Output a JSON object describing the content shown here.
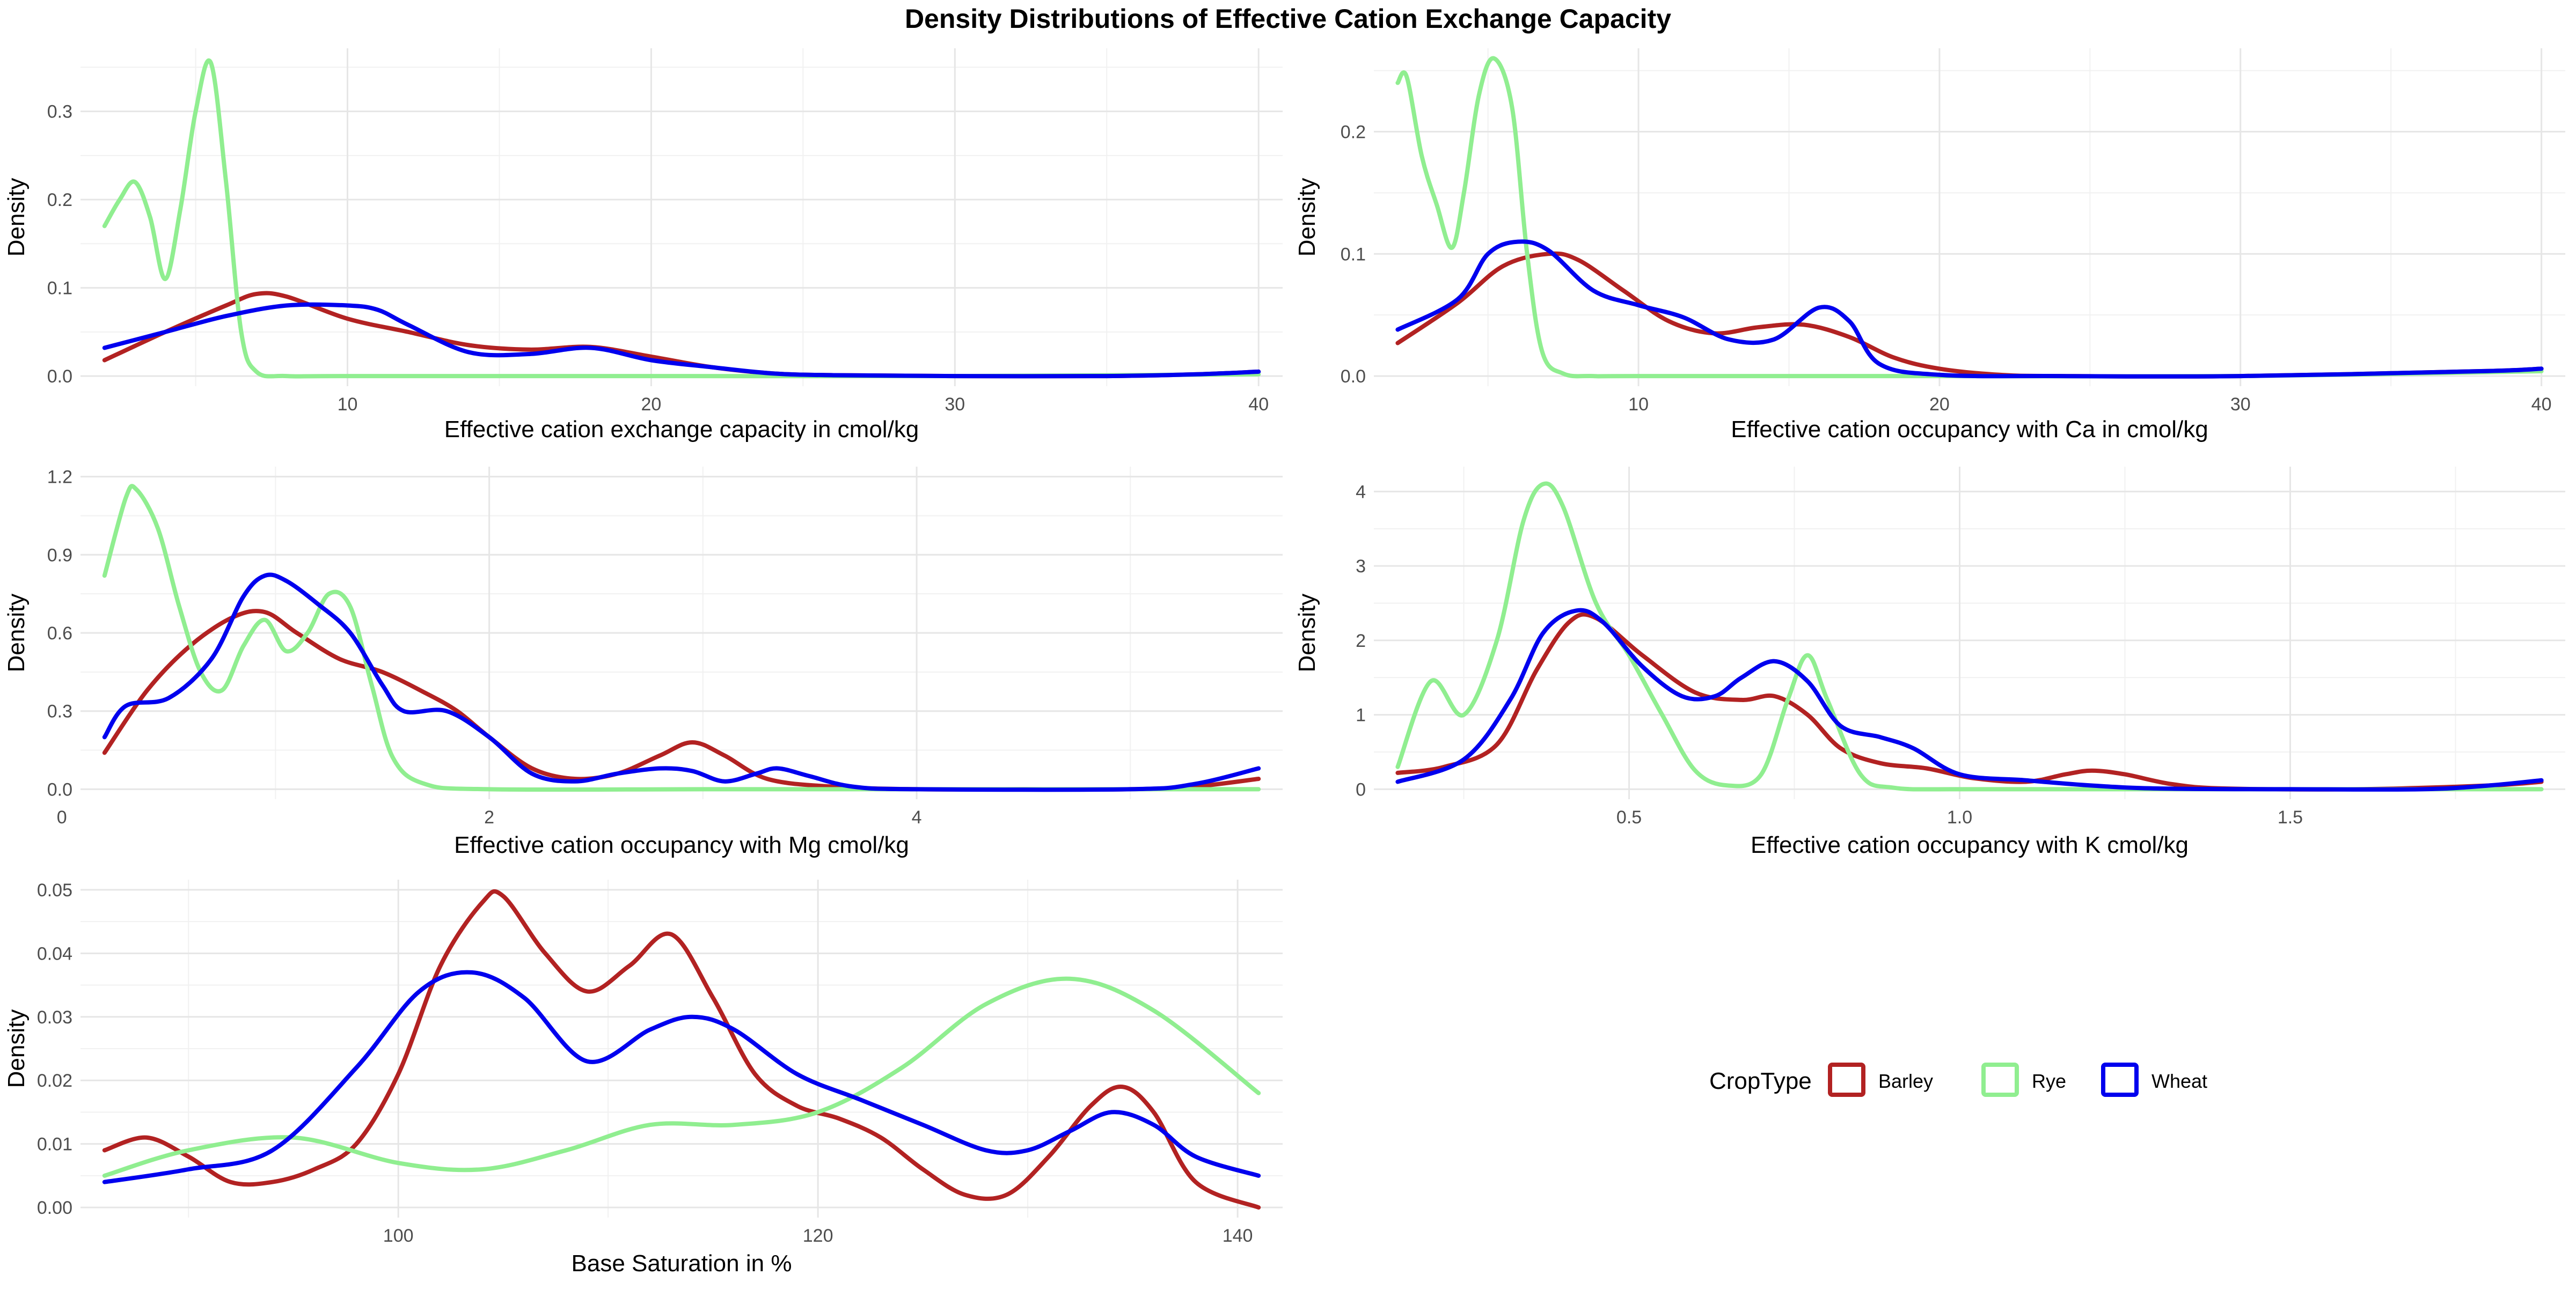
{
  "title": "Density Distributions of Effective Cation Exchange Capacity",
  "legend": {
    "title": "CropType",
    "items": [
      {
        "label": "Barley",
        "color": "#B22222"
      },
      {
        "label": "Rye",
        "color": "#90EE90"
      },
      {
        "label": "Wheat",
        "color": "#0000EE"
      }
    ]
  },
  "chart_data": [
    {
      "type": "line",
      "xlabel": "Effective cation exchange capacity in cmol/kg",
      "ylabel": "Density",
      "xlim": [
        2,
        40
      ],
      "ylim": [
        0,
        0.36
      ],
      "xticks": [
        10,
        20,
        30,
        40
      ],
      "xtick_labels": [
        "10",
        "20",
        "30",
        "40"
      ],
      "yticks": [
        0,
        0.1,
        0.2,
        0.3
      ],
      "ytick_labels": [
        "0.0",
        "0.1",
        "0.2",
        "0.3"
      ],
      "grid": true,
      "series": [
        {
          "name": "Barley",
          "color": "#B22222",
          "x": [
            2,
            4,
            6,
            7,
            8,
            10,
            12,
            14,
            16,
            18,
            20,
            22,
            24,
            26,
            30,
            35,
            38,
            40
          ],
          "y": [
            0.018,
            0.05,
            0.08,
            0.093,
            0.09,
            0.065,
            0.05,
            0.035,
            0.03,
            0.033,
            0.022,
            0.01,
            0.003,
            0.001,
            0,
            0,
            0.002,
            0.005
          ]
        },
        {
          "name": "Rye",
          "color": "#90EE90",
          "x": [
            2,
            2.5,
            3,
            3.5,
            4,
            4.5,
            5,
            5.5,
            6,
            6.5,
            7,
            8,
            10,
            20,
            30,
            40
          ],
          "y": [
            0.17,
            0.2,
            0.22,
            0.18,
            0.11,
            0.19,
            0.3,
            0.355,
            0.22,
            0.05,
            0.005,
            0,
            0,
            0,
            0,
            0.002
          ]
        },
        {
          "name": "Wheat",
          "color": "#0000EE",
          "x": [
            2,
            4,
            6,
            8,
            10,
            11,
            12,
            14,
            16,
            18,
            20,
            22,
            24,
            26,
            30,
            35,
            38,
            40
          ],
          "y": [
            0.032,
            0.05,
            0.068,
            0.08,
            0.08,
            0.075,
            0.058,
            0.027,
            0.025,
            0.032,
            0.018,
            0.01,
            0.003,
            0.001,
            0,
            0,
            0.002,
            0.005
          ]
        }
      ]
    },
    {
      "type": "line",
      "xlabel": "Effective cation occupancy with Ca in cmol/kg",
      "ylabel": "Density",
      "xlim": [
        2,
        40
      ],
      "ylim": [
        0,
        0.26
      ],
      "xticks": [
        10,
        20,
        30,
        40
      ],
      "xtick_labels": [
        "10",
        "20",
        "30",
        "40"
      ],
      "yticks": [
        0,
        0.1,
        0.2
      ],
      "ytick_labels": [
        "0.0",
        "0.1",
        "0.2"
      ],
      "grid": true,
      "series": [
        {
          "name": "Barley",
          "color": "#B22222",
          "x": [
            2,
            4,
            5.5,
            7,
            8,
            9.5,
            11,
            12.5,
            14,
            15.5,
            17,
            18.5,
            20,
            22,
            24,
            30,
            38,
            40
          ],
          "y": [
            0.027,
            0.06,
            0.09,
            0.1,
            0.095,
            0.07,
            0.045,
            0.035,
            0.04,
            0.042,
            0.032,
            0.015,
            0.006,
            0.001,
            0,
            0,
            0.004,
            0.006
          ]
        },
        {
          "name": "Rye",
          "color": "#90EE90",
          "x": [
            2,
            2.3,
            2.8,
            3.3,
            3.8,
            4.2,
            4.7,
            5.2,
            5.8,
            6.3,
            6.8,
            7.5,
            8.5,
            10,
            20,
            30,
            40
          ],
          "y": [
            0.24,
            0.245,
            0.18,
            0.14,
            0.105,
            0.15,
            0.23,
            0.26,
            0.22,
            0.1,
            0.02,
            0.002,
            0,
            0,
            0,
            0,
            0.004
          ]
        },
        {
          "name": "Wheat",
          "color": "#0000EE",
          "x": [
            2,
            4,
            5,
            6,
            7,
            8.5,
            10,
            11.5,
            13,
            14.5,
            16,
            17,
            18,
            20,
            24,
            30,
            38,
            40
          ],
          "y": [
            0.038,
            0.063,
            0.1,
            0.11,
            0.103,
            0.07,
            0.058,
            0.048,
            0.03,
            0.03,
            0.056,
            0.045,
            0.01,
            0.001,
            0,
            0,
            0.004,
            0.006
          ]
        }
      ]
    },
    {
      "type": "line",
      "xlabel": "Effective cation occupancy with Mg cmol/kg",
      "ylabel": "Density",
      "xlim": [
        0.2,
        5.6
      ],
      "ylim": [
        0,
        1.2
      ],
      "xticks": [
        0,
        2,
        4
      ],
      "xtick_labels": [
        "0",
        "2",
        "4"
      ],
      "yticks": [
        0,
        0.3,
        0.6,
        0.9,
        1.2
      ],
      "ytick_labels": [
        "0.0",
        "0.3",
        "0.6",
        "0.9",
        "1.2"
      ],
      "grid": true,
      "series": [
        {
          "name": "Barley",
          "color": "#B22222",
          "x": [
            0.2,
            0.4,
            0.6,
            0.8,
            0.95,
            1.1,
            1.3,
            1.5,
            1.7,
            1.85,
            2.0,
            2.2,
            2.4,
            2.6,
            2.8,
            2.95,
            3.1,
            3.3,
            3.6,
            4.0,
            4.5,
            5.0,
            5.3,
            5.6
          ],
          "y": [
            0.14,
            0.38,
            0.55,
            0.66,
            0.68,
            0.6,
            0.5,
            0.45,
            0.37,
            0.3,
            0.2,
            0.08,
            0.04,
            0.06,
            0.13,
            0.18,
            0.13,
            0.04,
            0.01,
            0,
            0,
            0,
            0.01,
            0.04
          ]
        },
        {
          "name": "Rye",
          "color": "#90EE90",
          "x": [
            0.2,
            0.3,
            0.35,
            0.45,
            0.55,
            0.65,
            0.75,
            0.85,
            0.95,
            1.05,
            1.15,
            1.25,
            1.35,
            1.45,
            1.55,
            1.7,
            2.0,
            3.0,
            4.0,
            5.6
          ],
          "y": [
            0.82,
            1.12,
            1.15,
            1.0,
            0.7,
            0.45,
            0.38,
            0.55,
            0.65,
            0.53,
            0.6,
            0.75,
            0.7,
            0.4,
            0.12,
            0.02,
            0,
            0,
            0,
            0
          ]
        },
        {
          "name": "Wheat",
          "color": "#0000EE",
          "x": [
            0.2,
            0.3,
            0.5,
            0.7,
            0.85,
            0.95,
            1.05,
            1.2,
            1.35,
            1.5,
            1.6,
            1.8,
            2.0,
            2.2,
            2.4,
            2.6,
            2.8,
            2.95,
            3.1,
            3.25,
            3.35,
            3.5,
            3.7,
            4.0,
            5.0,
            5.3,
            5.6
          ],
          "y": [
            0.2,
            0.32,
            0.35,
            0.5,
            0.74,
            0.82,
            0.8,
            0.71,
            0.6,
            0.4,
            0.3,
            0.3,
            0.2,
            0.06,
            0.03,
            0.06,
            0.08,
            0.07,
            0.03,
            0.06,
            0.08,
            0.05,
            0.01,
            0,
            0,
            0.02,
            0.08
          ]
        }
      ]
    },
    {
      "type": "line",
      "xlabel": "Effective cation occupancy with K cmol/kg",
      "ylabel": "Density",
      "xlim": [
        0.15,
        1.88
      ],
      "ylim": [
        0,
        4.2
      ],
      "xticks": [
        0.5,
        1.0,
        1.5
      ],
      "xtick_labels": [
        "0.5",
        "1.0",
        "1.5"
      ],
      "yticks": [
        0,
        1,
        2,
        3,
        4
      ],
      "ytick_labels": [
        "0",
        "1",
        "2",
        "3",
        "4"
      ],
      "grid": true,
      "series": [
        {
          "name": "Barley",
          "color": "#B22222",
          "x": [
            0.15,
            0.22,
            0.3,
            0.36,
            0.41,
            0.45,
            0.52,
            0.6,
            0.67,
            0.72,
            0.77,
            0.82,
            0.88,
            0.95,
            1.02,
            1.1,
            1.16,
            1.2,
            1.25,
            1.32,
            1.4,
            1.6,
            1.8,
            1.88
          ],
          "y": [
            0.22,
            0.3,
            0.6,
            1.6,
            2.25,
            2.3,
            1.8,
            1.3,
            1.2,
            1.25,
            1.0,
            0.55,
            0.35,
            0.28,
            0.15,
            0.1,
            0.2,
            0.25,
            0.2,
            0.07,
            0.01,
            0,
            0.05,
            0.1
          ]
        },
        {
          "name": "Rye",
          "color": "#90EE90",
          "x": [
            0.15,
            0.2,
            0.25,
            0.3,
            0.34,
            0.37,
            0.4,
            0.45,
            0.5,
            0.55,
            0.6,
            0.65,
            0.7,
            0.74,
            0.77,
            0.8,
            0.85,
            0.9,
            1.0,
            1.2,
            1.5,
            1.88
          ],
          "y": [
            0.3,
            1.45,
            1.0,
            2.0,
            3.6,
            4.1,
            3.8,
            2.5,
            1.8,
            1.0,
            0.25,
            0.05,
            0.2,
            1.2,
            1.8,
            1.2,
            0.2,
            0.02,
            0,
            0,
            0,
            0
          ]
        },
        {
          "name": "Wheat",
          "color": "#0000EE",
          "x": [
            0.15,
            0.25,
            0.32,
            0.37,
            0.42,
            0.46,
            0.52,
            0.58,
            0.63,
            0.67,
            0.72,
            0.77,
            0.82,
            0.88,
            0.93,
            1.0,
            1.1,
            1.2,
            1.3,
            1.5,
            1.7,
            1.8,
            1.88
          ],
          "y": [
            0.1,
            0.4,
            1.2,
            2.1,
            2.4,
            2.25,
            1.65,
            1.25,
            1.25,
            1.5,
            1.72,
            1.45,
            0.85,
            0.7,
            0.55,
            0.2,
            0.12,
            0.05,
            0.01,
            0,
            0,
            0.05,
            0.12
          ]
        }
      ]
    },
    {
      "type": "line",
      "xlabel": "Base Saturation in %",
      "ylabel": "Density",
      "xlim": [
        86,
        141
      ],
      "ylim": [
        0,
        0.05
      ],
      "xticks": [
        100,
        120,
        140
      ],
      "xtick_labels": [
        "100",
        "120",
        "140"
      ],
      "yticks": [
        0,
        0.01,
        0.02,
        0.03,
        0.04,
        0.05
      ],
      "ytick_labels": [
        "0.00",
        "0.01",
        "0.02",
        "0.03",
        "0.04",
        "0.05"
      ],
      "grid": true,
      "series": [
        {
          "name": "Barley",
          "color": "#B22222",
          "x": [
            86,
            88,
            90,
            92,
            94,
            96,
            98,
            100,
            102,
            104,
            105,
            107,
            109,
            111,
            113,
            115,
            117,
            119,
            121,
            123,
            125,
            127,
            129,
            131,
            133,
            134.5,
            136,
            138,
            141
          ],
          "y": [
            0.009,
            0.011,
            0.008,
            0.004,
            0.004,
            0.006,
            0.01,
            0.021,
            0.038,
            0.048,
            0.049,
            0.04,
            0.034,
            0.038,
            0.043,
            0.033,
            0.021,
            0.016,
            0.014,
            0.011,
            0.006,
            0.002,
            0.002,
            0.008,
            0.016,
            0.019,
            0.015,
            0.004,
            0
          ]
        },
        {
          "name": "Rye",
          "color": "#90EE90",
          "x": [
            86,
            90,
            95,
            100,
            104,
            108,
            112,
            116,
            120,
            124,
            128,
            132,
            136,
            141
          ],
          "y": [
            0.005,
            0.009,
            0.011,
            0.007,
            0.006,
            0.009,
            0.013,
            0.013,
            0.015,
            0.022,
            0.032,
            0.036,
            0.031,
            0.018
          ]
        },
        {
          "name": "Wheat",
          "color": "#0000EE",
          "x": [
            86,
            90,
            94,
            98,
            101,
            103.5,
            106,
            109,
            112,
            114,
            116,
            119,
            122,
            125,
            128,
            130,
            132,
            134,
            136,
            138,
            141
          ],
          "y": [
            0.004,
            0.006,
            0.009,
            0.022,
            0.034,
            0.037,
            0.033,
            0.023,
            0.028,
            0.03,
            0.028,
            0.021,
            0.017,
            0.013,
            0.009,
            0.009,
            0.012,
            0.015,
            0.013,
            0.008,
            0.005
          ]
        }
      ]
    }
  ]
}
